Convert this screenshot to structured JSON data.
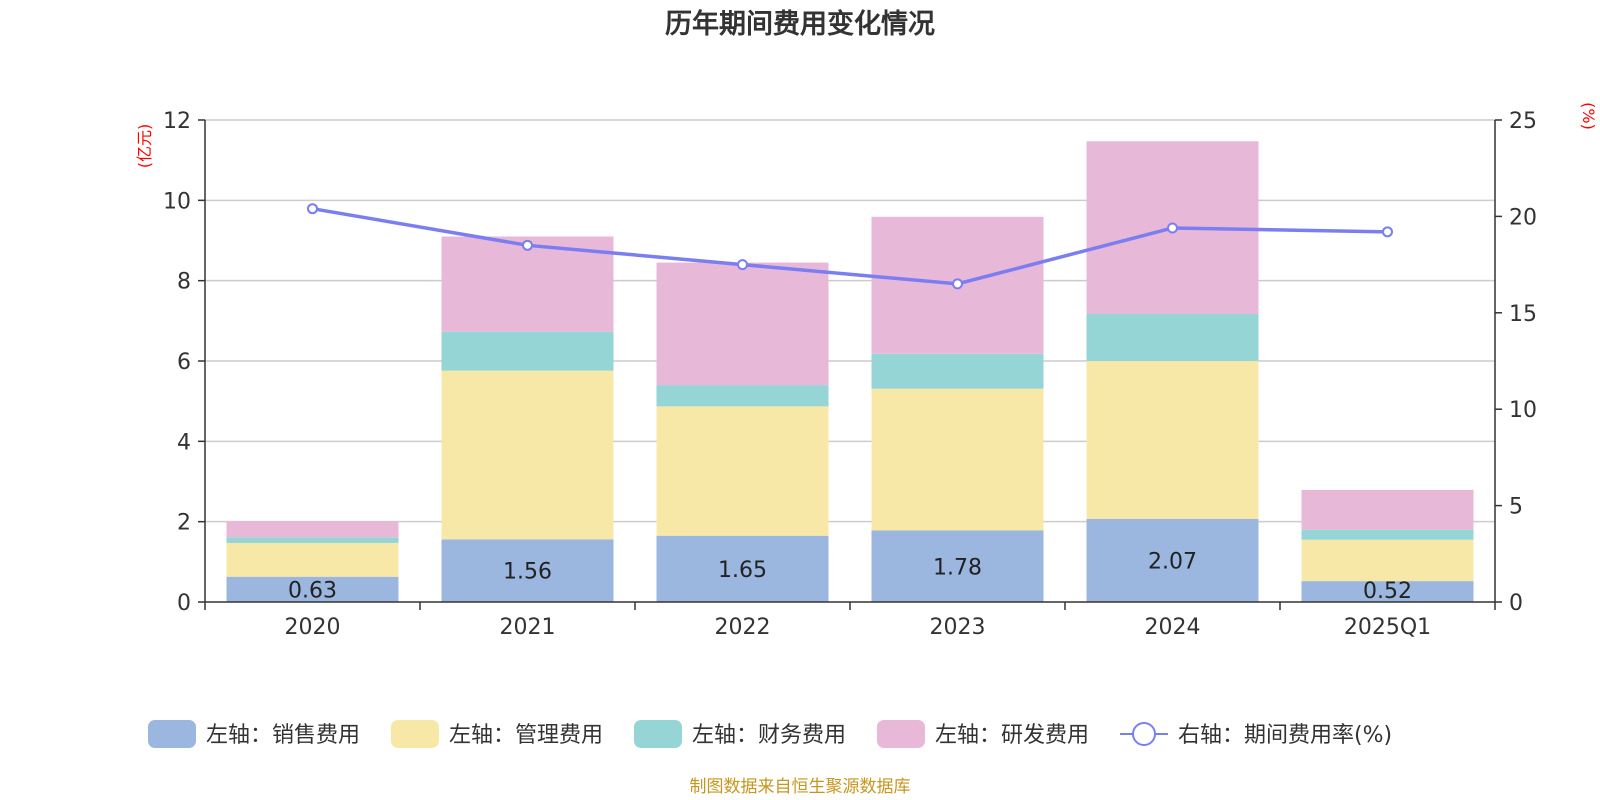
{
  "chart_data": {
    "type": "bar",
    "title": "历年期间费用变化情况",
    "categories": [
      "2020",
      "2021",
      "2022",
      "2023",
      "2024",
      "2025Q1"
    ],
    "left_axis": {
      "unit": "(亿元)",
      "ylim": [
        0,
        12
      ],
      "ticks": [
        0,
        2,
        4,
        6,
        8,
        10,
        12
      ]
    },
    "right_axis": {
      "unit": "(%)",
      "ylim": [
        0,
        25
      ],
      "ticks": [
        0,
        5,
        10,
        15,
        20,
        25
      ]
    },
    "stacked": true,
    "grid": true,
    "legend_position": "bottom",
    "series": [
      {
        "name": "左轴：销售费用",
        "axis": "left",
        "kind": "bar",
        "color": "#9bb7e0",
        "values": [
          0.63,
          1.56,
          1.65,
          1.78,
          2.07,
          0.52
        ],
        "labels": [
          "0.63",
          "1.56",
          "1.65",
          "1.78",
          "2.07",
          "0.52"
        ]
      },
      {
        "name": "左轴：管理费用",
        "axis": "left",
        "kind": "bar",
        "color": "#f8e8a8",
        "values": [
          0.84,
          4.2,
          3.22,
          3.53,
          3.93,
          1.03
        ]
      },
      {
        "name": "左轴：财务费用",
        "axis": "left",
        "kind": "bar",
        "color": "#96d5d6",
        "values": [
          0.14,
          0.97,
          0.53,
          0.87,
          1.17,
          0.25
        ]
      },
      {
        "name": "左轴：研发费用",
        "axis": "left",
        "kind": "bar",
        "color": "#e8b8d8",
        "values": [
          0.4,
          2.37,
          3.05,
          3.41,
          4.3,
          0.99
        ]
      },
      {
        "name": "右轴：期间费用率(%)",
        "axis": "right",
        "kind": "line",
        "color": "#7b7ef0",
        "values": [
          20.4,
          18.5,
          17.5,
          16.5,
          19.4,
          19.2
        ]
      }
    ]
  },
  "footer": {
    "source": "制图数据来自恒生聚源数据库"
  }
}
